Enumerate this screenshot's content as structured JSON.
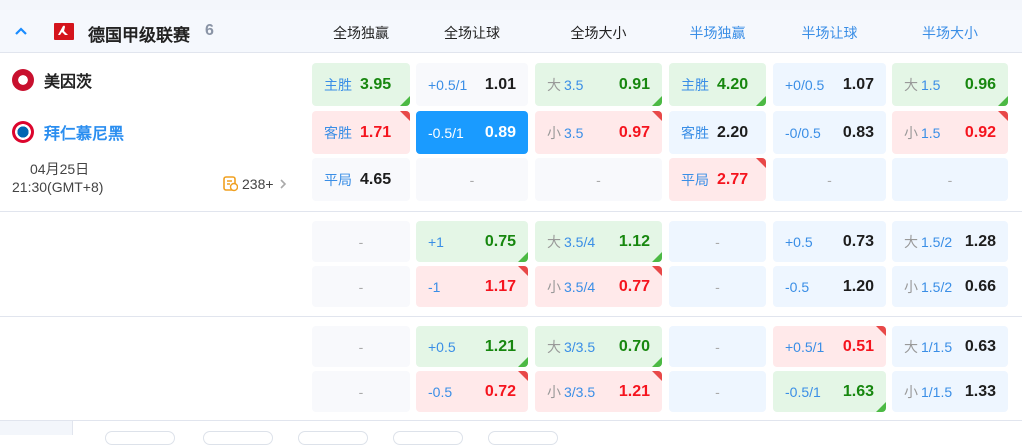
{
  "league": {
    "name": "德国甲级联赛",
    "count": "6",
    "icon": "bundesliga-logo"
  },
  "columns": [
    {
      "label": "全场独赢",
      "color": "#222222"
    },
    {
      "label": "全场让球",
      "color": "#222222"
    },
    {
      "label": "全场大小",
      "color": "#222222"
    },
    {
      "label": "半场独赢",
      "color": "#3a8ee6"
    },
    {
      "label": "半场让球",
      "color": "#3a8ee6"
    },
    {
      "label": "半场大小",
      "color": "#3a8ee6"
    }
  ],
  "match": {
    "home": "美因茨",
    "away": "拜仁慕尼黑",
    "date": "04月25日",
    "time": "21:30(GMT+8)",
    "markets": "238+"
  },
  "colors": {
    "accent": "#1a9bff",
    "up": "#4cb944",
    "down": "#e84848",
    "green_value": "#17870f",
    "red_value": "#f5141e"
  },
  "sections": [
    [
      [
        {
          "lbl": "主胜",
          "val": "3.95",
          "st": "green",
          "cn": "up"
        },
        {
          "lbl": "+0.5/1",
          "val": "1.01",
          "st": "neutral"
        },
        {
          "pre": "大",
          "lbl": "3.5",
          "val": "0.91",
          "st": "green",
          "cn": "up"
        },
        {
          "lbl": "主胜",
          "val": "4.20",
          "st": "green",
          "cn": "up"
        },
        {
          "lbl": "+0/0.5",
          "val": "1.07",
          "st": "half"
        },
        {
          "pre": "大",
          "lbl": "1.5",
          "val": "0.96",
          "st": "green",
          "cn": "up"
        }
      ],
      [
        {
          "lbl": "客胜",
          "val": "1.71",
          "st": "red",
          "cn": "down"
        },
        {
          "lbl": "-0.5/1",
          "val": "0.89",
          "st": "sel"
        },
        {
          "pre": "小",
          "lbl": "3.5",
          "val": "0.97",
          "st": "red",
          "cn": "down"
        },
        {
          "lbl": "客胜",
          "val": "2.20",
          "st": "half"
        },
        {
          "lbl": "-0/0.5",
          "val": "0.83",
          "st": "half"
        },
        {
          "pre": "小",
          "lbl": "1.5",
          "val": "0.92",
          "st": "red",
          "cn": "down"
        }
      ],
      [
        {
          "lbl": "平局",
          "val": "4.65",
          "st": "neutral"
        },
        {
          "dash": "-",
          "st": "neutral"
        },
        {
          "dash": "-",
          "st": "neutral"
        },
        {
          "lbl": "平局",
          "val": "2.77",
          "st": "red",
          "cn": "down"
        },
        {
          "dash": "-",
          "st": "half"
        },
        {
          "dash": "-",
          "st": "half"
        }
      ]
    ],
    [
      [
        {
          "dash": "-",
          "st": "neutral"
        },
        {
          "lbl": "+1",
          "val": "0.75",
          "st": "green",
          "cn": "up"
        },
        {
          "pre": "大",
          "lbl": "3.5/4",
          "val": "1.12",
          "st": "green",
          "cn": "up"
        },
        {
          "dash": "-",
          "st": "half"
        },
        {
          "lbl": "+0.5",
          "val": "0.73",
          "st": "half"
        },
        {
          "pre": "大",
          "lbl": "1.5/2",
          "val": "1.28",
          "st": "half"
        }
      ],
      [
        {
          "dash": "-",
          "st": "neutral"
        },
        {
          "lbl": "-1",
          "val": "1.17",
          "st": "red",
          "cn": "down"
        },
        {
          "pre": "小",
          "lbl": "3.5/4",
          "val": "0.77",
          "st": "red",
          "cn": "down"
        },
        {
          "dash": "-",
          "st": "half"
        },
        {
          "lbl": "-0.5",
          "val": "1.20",
          "st": "half"
        },
        {
          "pre": "小",
          "lbl": "1.5/2",
          "val": "0.66",
          "st": "half"
        }
      ]
    ],
    [
      [
        {
          "dash": "-",
          "st": "neutral"
        },
        {
          "lbl": "+0.5",
          "val": "1.21",
          "st": "green",
          "cn": "up"
        },
        {
          "pre": "大",
          "lbl": "3/3.5",
          "val": "0.70",
          "st": "green",
          "cn": "up"
        },
        {
          "dash": "-",
          "st": "half"
        },
        {
          "lbl": "+0.5/1",
          "val": "0.51",
          "st": "red",
          "cn": "down"
        },
        {
          "pre": "大",
          "lbl": "1/1.5",
          "val": "0.63",
          "st": "half"
        }
      ],
      [
        {
          "dash": "-",
          "st": "neutral"
        },
        {
          "lbl": "-0.5",
          "val": "0.72",
          "st": "red",
          "cn": "down"
        },
        {
          "pre": "小",
          "lbl": "3/3.5",
          "val": "1.21",
          "st": "red",
          "cn": "down"
        },
        {
          "dash": "-",
          "st": "half"
        },
        {
          "lbl": "-0.5/1",
          "val": "1.63",
          "st": "green",
          "cn": "up"
        },
        {
          "pre": "小",
          "lbl": "1/1.5",
          "val": "1.33",
          "st": "half"
        }
      ]
    ]
  ]
}
